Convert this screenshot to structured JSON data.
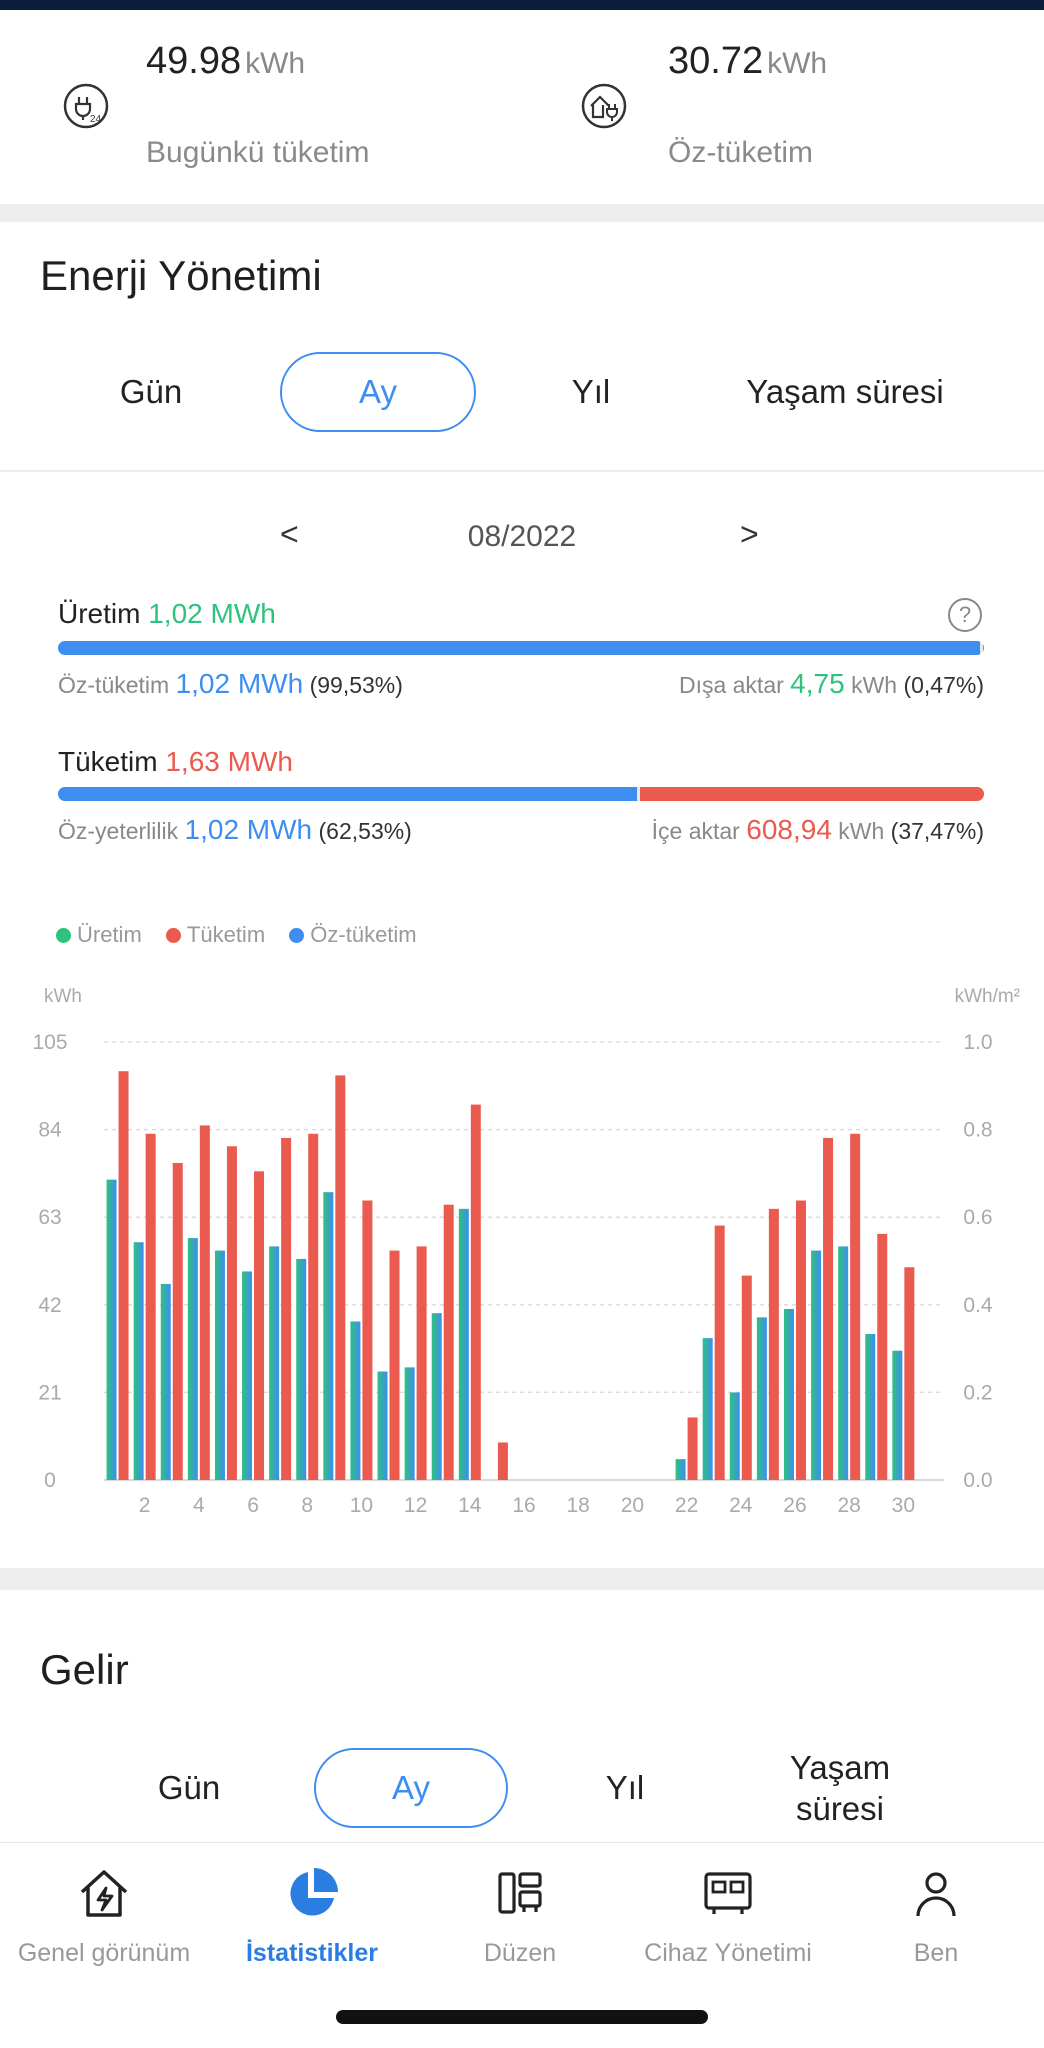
{
  "colors": {
    "accent": "#3d8ef0",
    "production": "#2ec27e",
    "consumption": "#ea5a4f",
    "self_consumption": "#3d8ef0",
    "header_strip": "#0c1d3a"
  },
  "top_stats": [
    {
      "value": "49.98",
      "unit": "kWh",
      "label": "Bugünkü tüketim",
      "icon": "plug-24-icon"
    },
    {
      "value": "30.72",
      "unit": "kWh",
      "label": "Öz-tüketim",
      "icon": "house-plug-icon"
    }
  ],
  "energy": {
    "title": "Enerji Yönetimi",
    "tabs": [
      "Gün",
      "Ay",
      "Yıl",
      "Yaşam süresi"
    ],
    "active_tab": "Ay",
    "date": "08/2022",
    "prev_arrow": "<",
    "next_arrow": ">",
    "help": "?",
    "production": {
      "label": "Üretim",
      "value": "1,02 MWh",
      "self_label": "Öz-tüketim",
      "self_value": "1,02 MWh",
      "self_pct": "(99,53%)",
      "export_label": "Dışa aktar",
      "export_value": "4,75",
      "export_unit": "kWh",
      "export_pct": "(0,47%)",
      "self_share": 0.9953
    },
    "consumption": {
      "label": "Tüketim",
      "value": "1,63 MWh",
      "self_label": "Öz-yeterlilik",
      "self_value": "1,02 MWh",
      "self_pct": "(62,53%)",
      "import_label": "İçe aktar",
      "import_value": "608,94",
      "import_unit": "kWh",
      "import_pct": "(37,47%)",
      "self_share": 0.6253
    },
    "legend": [
      "Üretim",
      "Tüketim",
      "Öz-tüketim"
    ]
  },
  "chart_data": {
    "type": "bar",
    "title": "",
    "ylabel": "kWh",
    "ylabel_right": "kWh/m²",
    "ylim": [
      0,
      105
    ],
    "yticks": [
      "0",
      "21",
      "42",
      "63",
      "84",
      "105"
    ],
    "ylim_right": [
      0,
      1.0
    ],
    "yticks_right": [
      "0.0",
      "0.2",
      "0.4",
      "0.6",
      "0.8",
      "1.0"
    ],
    "xtick_labels": [
      "2",
      "4",
      "6",
      "8",
      "10",
      "12",
      "14",
      "16",
      "18",
      "20",
      "22",
      "24",
      "26",
      "28",
      "30"
    ],
    "grid": true,
    "categories": [
      1,
      2,
      3,
      4,
      5,
      6,
      7,
      8,
      9,
      10,
      11,
      12,
      13,
      14,
      15,
      16,
      17,
      18,
      19,
      20,
      21,
      22,
      23,
      24,
      25,
      26,
      27,
      28,
      29,
      30,
      31
    ],
    "series": [
      {
        "name": "Öz-tüketim",
        "values": [
          72,
          57,
          47,
          58,
          55,
          50,
          56,
          53,
          69,
          38,
          26,
          27,
          40,
          65,
          0,
          0,
          0,
          0,
          0,
          0,
          0,
          5,
          34,
          21,
          39,
          41,
          55,
          56,
          35,
          31,
          0
        ]
      },
      {
        "name": "Tüketim",
        "values": [
          98,
          83,
          76,
          85,
          80,
          74,
          82,
          83,
          97,
          67,
          55,
          56,
          66,
          90,
          9,
          0,
          0,
          0,
          0,
          0,
          0,
          15,
          61,
          49,
          65,
          67,
          82,
          83,
          59,
          51,
          0
        ]
      }
    ]
  },
  "income": {
    "title": "Gelir",
    "tabs": [
      "Gün",
      "Ay",
      "Yıl",
      "Yaşam\nsüresi"
    ],
    "active_tab": "Ay"
  },
  "nav": [
    {
      "label": "Genel görünüm",
      "icon": "home-lightning-icon",
      "active": false
    },
    {
      "label": "İstatistikler",
      "icon": "pie-chart-icon",
      "active": true
    },
    {
      "label": "Düzen",
      "icon": "layout-icon",
      "active": false
    },
    {
      "label": "Cihaz Yönetimi",
      "icon": "device-icon",
      "active": false
    },
    {
      "label": "Ben",
      "icon": "person-icon",
      "active": false
    }
  ]
}
